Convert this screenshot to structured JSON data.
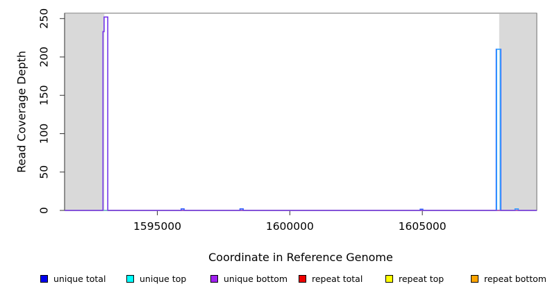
{
  "chart_data": {
    "type": "line",
    "title": "",
    "xlabel": "Coordinate in Reference Genome",
    "ylabel": "Read Coverage Depth",
    "xlim": [
      1591500,
      1609320
    ],
    "ylim": [
      0,
      257
    ],
    "x_ticks": [
      1595000,
      1600000,
      1605000
    ],
    "y_ticks": [
      0,
      50,
      100,
      150,
      200,
      250
    ],
    "grid": false,
    "repeat_region_color": "#d9d9d9",
    "repeat_regions": [
      [
        1591500,
        1593000
      ],
      [
        1607900,
        1609320
      ]
    ],
    "series": [
      {
        "name": "repeat total",
        "color": "#ee0000",
        "points": [
          [
            1591500,
            0
          ],
          [
            1609320,
            0
          ]
        ]
      },
      {
        "name": "repeat top",
        "color": "#ffff00",
        "points": [
          [
            1591500,
            0
          ],
          [
            1609320,
            0
          ]
        ]
      },
      {
        "name": "repeat bottom",
        "color": "#ffa500",
        "points": [
          [
            1591500,
            0
          ],
          [
            1609320,
            0
          ]
        ]
      },
      {
        "name": "unique total",
        "color": "#2e5cff",
        "points": [
          [
            1591500,
            0
          ],
          [
            1592950,
            0
          ],
          [
            1592950,
            233
          ],
          [
            1592990,
            233
          ],
          [
            1592990,
            252
          ],
          [
            1593130,
            252
          ],
          [
            1593130,
            0
          ],
          [
            1595900,
            0
          ],
          [
            1595900,
            2
          ],
          [
            1596010,
            2
          ],
          [
            1596010,
            0
          ],
          [
            1598120,
            0
          ],
          [
            1598120,
            2
          ],
          [
            1598240,
            2
          ],
          [
            1598240,
            0
          ],
          [
            1604920,
            0
          ],
          [
            1604920,
            1.5
          ],
          [
            1605020,
            1.5
          ],
          [
            1605020,
            0
          ],
          [
            1607790,
            0
          ],
          [
            1607790,
            210
          ],
          [
            1607960,
            210
          ],
          [
            1607960,
            0
          ],
          [
            1608500,
            0
          ],
          [
            1608500,
            2
          ],
          [
            1608620,
            2
          ],
          [
            1608620,
            0
          ],
          [
            1609320,
            0
          ]
        ]
      },
      {
        "name": "unique top",
        "color": "#35b6ff",
        "points": [
          [
            1591500,
            0
          ],
          [
            1607810,
            0
          ],
          [
            1607810,
            210
          ],
          [
            1607940,
            210
          ],
          [
            1607940,
            0
          ],
          [
            1608500,
            0
          ],
          [
            1608500,
            2
          ],
          [
            1608620,
            2
          ],
          [
            1608620,
            0
          ],
          [
            1609320,
            0
          ]
        ]
      },
      {
        "name": "unique bottom",
        "color": "#8a2be2",
        "points": [
          [
            1591500,
            0
          ],
          [
            1592950,
            0
          ],
          [
            1592950,
            233
          ],
          [
            1592990,
            233
          ],
          [
            1592990,
            252
          ],
          [
            1593130,
            252
          ],
          [
            1593130,
            0
          ],
          [
            1609320,
            0
          ]
        ]
      }
    ],
    "legend": [
      {
        "label": "unique total",
        "color": "#0000ee"
      },
      {
        "label": "unique top",
        "color": "#00ffff"
      },
      {
        "label": "unique bottom",
        "color": "#a020f0"
      },
      {
        "label": "repeat total",
        "color": "#ee0000"
      },
      {
        "label": "repeat top",
        "color": "#ffff00"
      },
      {
        "label": "repeat bottom",
        "color": "#ffa500"
      }
    ],
    "peaks_note": {
      "left_spike": {
        "x": 1593000,
        "value": 252,
        "shoulder": 233,
        "series": "unique bottom"
      },
      "right_spike": {
        "x": 1607870,
        "value": 210,
        "series": "unique total / unique top"
      }
    }
  }
}
